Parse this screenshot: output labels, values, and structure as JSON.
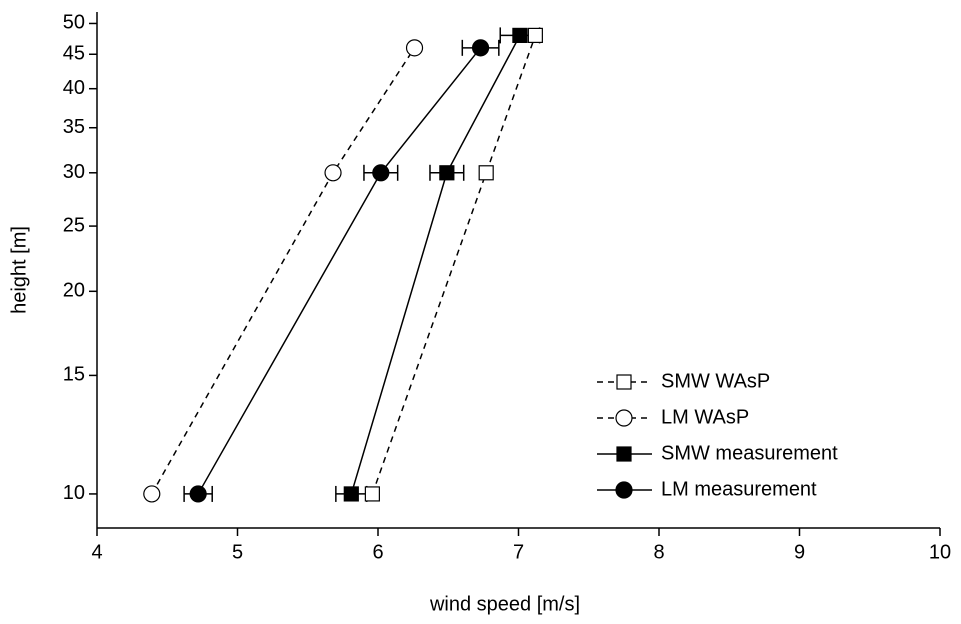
{
  "chart_data": {
    "type": "profile",
    "x_label": "wind speed [m/s]",
    "y_label": "height [m]",
    "xlim": [
      4,
      10
    ],
    "xticks": [
      4,
      5,
      6,
      7,
      8,
      9,
      10
    ],
    "ylim": [
      8.9,
      52
    ],
    "yticks": [
      10,
      15,
      20,
      25,
      30,
      35,
      40,
      45,
      50
    ],
    "log_y": true,
    "legend": "lower-right",
    "series": [
      {
        "name": "SMW WAsP",
        "color": "#000000",
        "marker": "square",
        "filled": false,
        "dash": true,
        "x": [
          5.96,
          6.77,
          7.12
        ],
        "y": [
          10,
          30,
          48
        ]
      },
      {
        "name": "LM WAsP",
        "color": "#000000",
        "marker": "circle",
        "filled": false,
        "dash": true,
        "x": [
          4.39,
          5.68,
          6.26
        ],
        "y": [
          10,
          30,
          46
        ]
      },
      {
        "name": "SMW measurement",
        "color": "#000000",
        "marker": "square",
        "filled": true,
        "dash": false,
        "x": [
          5.81,
          6.49,
          7.01
        ],
        "y": [
          10,
          30,
          48
        ],
        "xerr": [
          0.11,
          0.12,
          0.14
        ]
      },
      {
        "name": "LM measurement",
        "color": "#000000",
        "marker": "circle",
        "filled": true,
        "dash": false,
        "x": [
          4.72,
          6.02,
          6.73
        ],
        "y": [
          10,
          30,
          46
        ],
        "xerr": [
          0.1,
          0.12,
          0.13
        ]
      }
    ]
  }
}
